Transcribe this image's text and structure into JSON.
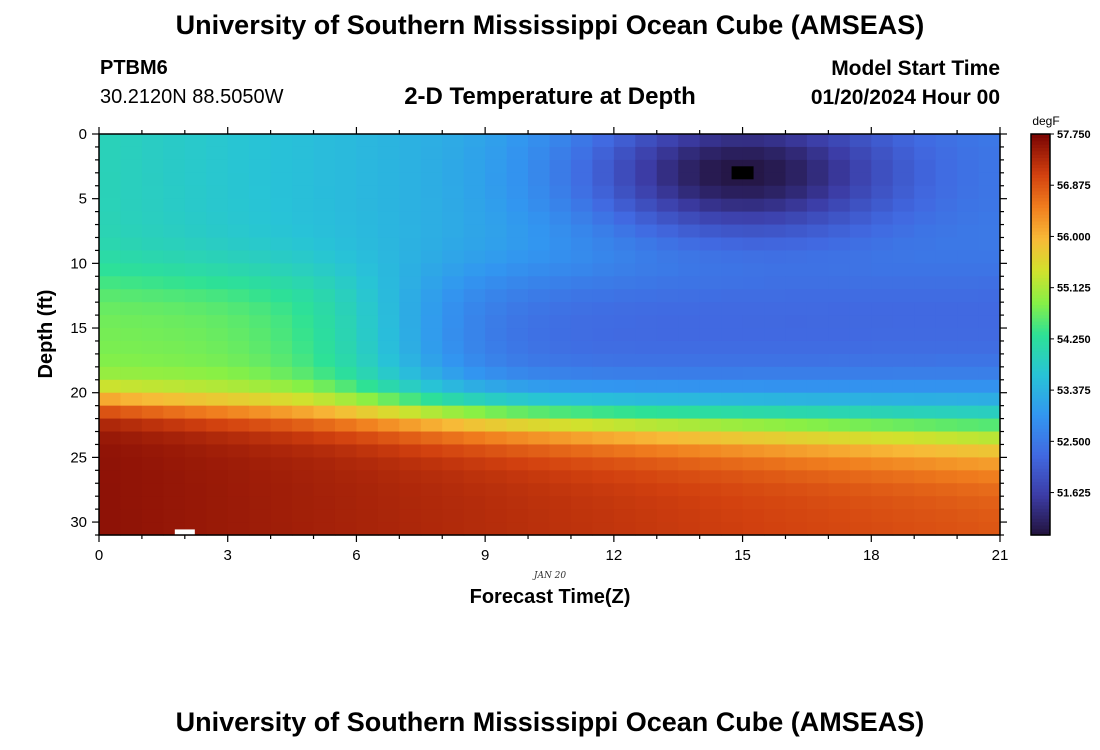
{
  "header": {
    "title": "University of Southern Mississippi Ocean Cube (AMSEAS)",
    "station": "PTBM6",
    "coordinates": "30.2120N  88.5050W",
    "subtitle": "2-D Temperature at Depth",
    "model_start_label": "Model Start Time",
    "model_start_value": "01/20/2024 Hour 00"
  },
  "footer": {
    "title": "University of Southern Mississippi Ocean Cube (AMSEAS)"
  },
  "chart_data": {
    "type": "heatmap",
    "title": "2-D Temperature at Depth",
    "xlabel": "Forecast Time(Z)",
    "ylabel": "Depth (ft)",
    "x_date_label": "JAN 20",
    "xlim": [
      0,
      21
    ],
    "ylim": [
      0,
      31
    ],
    "y_inverted": true,
    "x_ticks": [
      0,
      3,
      6,
      9,
      12,
      15,
      18,
      21
    ],
    "y_ticks": [
      0,
      5,
      10,
      15,
      20,
      25,
      30
    ],
    "colorbar": {
      "unit": "degF",
      "min": 50.9,
      "max": 57.75,
      "tick_values": [
        57.75,
        56.875,
        56.0,
        55.125,
        54.25,
        53.375,
        52.5,
        51.625
      ],
      "tick_labels": [
        "57.750",
        "56.875",
        "56.000",
        "55.125",
        "54.250",
        "53.375",
        "52.500",
        "51.625"
      ]
    },
    "grid": {
      "time_step_hours": 0.5,
      "depth_step_ft": 1.0,
      "surface_temp_start": 54.0,
      "surface_temp_end": 52.6,
      "cold_core": {
        "time": 15,
        "depth": 3,
        "temp": 50.95,
        "spread_hours": 3.8,
        "spread_depth_ft": 5.2
      },
      "mid_layer_temp_start": 54.8,
      "mid_layer_temp_end": 52.2,
      "mid_layer_transition_time": 6.8,
      "bottom_temp_start": 57.6,
      "bottom_temp_end": 56.9,
      "thermocline_depth_start": 20.5,
      "thermocline_depth_end": 22.5
    },
    "markers": [
      {
        "name": "min-marker",
        "time": 15,
        "depth": 3,
        "color": "#000000"
      },
      {
        "name": "max-marker",
        "time": 2.0,
        "depth": 30.8,
        "color": "#ffffff"
      }
    ]
  }
}
